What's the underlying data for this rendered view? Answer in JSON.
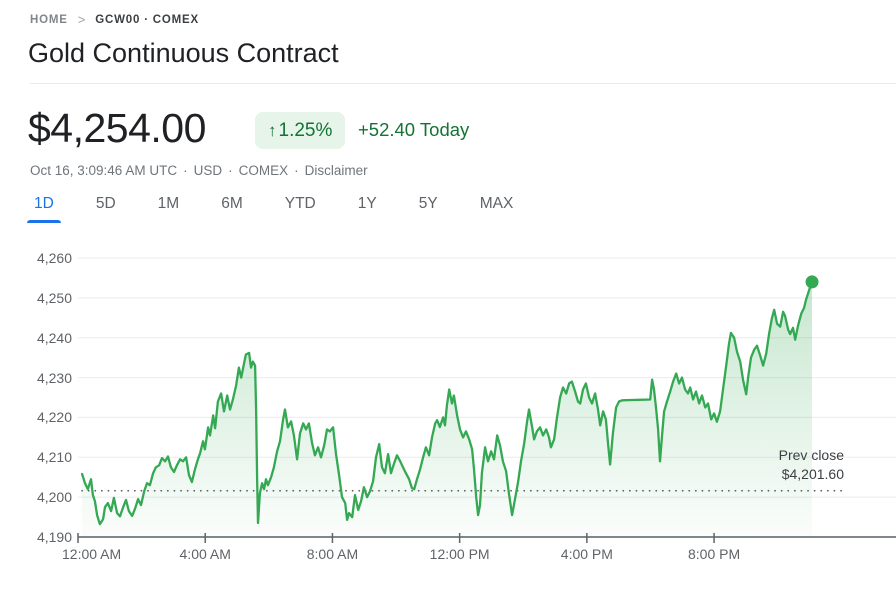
{
  "breadcrumb": {
    "home": "HOME",
    "separator": ">",
    "symbol": "GCW00 · COMEX"
  },
  "title": "Gold Continuous Contract",
  "quote": {
    "price": "$4,254.00",
    "arrow": "↑",
    "change_percent": "1.25%",
    "change_text": "+52.40 Today"
  },
  "meta": {
    "timestamp": "Oct 16, 3:09:46 AM UTC",
    "sep": "·",
    "currency": "USD",
    "exchange": "COMEX",
    "disclaimer": "Disclaimer"
  },
  "tabs": [
    {
      "label": "1D",
      "active": true
    },
    {
      "label": "5D",
      "active": false
    },
    {
      "label": "1M",
      "active": false
    },
    {
      "label": "6M",
      "active": false
    },
    {
      "label": "YTD",
      "active": false
    },
    {
      "label": "1Y",
      "active": false
    },
    {
      "label": "5Y",
      "active": false
    },
    {
      "label": "MAX",
      "active": false
    }
  ],
  "colors": {
    "line_green": "#34a853",
    "text_green": "#137333",
    "badge_bg": "#e6f4ea",
    "tab_blue": "#1a73e8",
    "axis_gray": "#5f6368",
    "grid_gray": "#e9ebee",
    "axis_line_gray": "#80868b"
  },
  "chart_data": {
    "type": "area",
    "title": "Gold Continuous Contract — 1D intraday price",
    "xlabel": "",
    "ylabel": "",
    "x_axis": {
      "range_hours": [
        0,
        25.72
      ],
      "ticks": [
        {
          "hour": 0,
          "label": "12:00 AM",
          "align": "left"
        },
        {
          "hour": 4,
          "label": "4:00 AM"
        },
        {
          "hour": 8,
          "label": "8:00 AM"
        },
        {
          "hour": 12,
          "label": "12:00 PM"
        },
        {
          "hour": 16,
          "label": "4:00 PM"
        },
        {
          "hour": 20,
          "label": "8:00 PM"
        }
      ]
    },
    "y_axis": {
      "range": [
        4190,
        4260
      ],
      "ticks": [
        {
          "value": 4260,
          "label": "4,260"
        },
        {
          "value": 4250,
          "label": "4,250"
        },
        {
          "value": 4240,
          "label": "4,240"
        },
        {
          "value": 4230,
          "label": "4,230"
        },
        {
          "value": 4220,
          "label": "4,220"
        },
        {
          "value": 4210,
          "label": "4,210"
        },
        {
          "value": 4200,
          "label": "4,200"
        },
        {
          "value": 4190,
          "label": "4,190"
        }
      ]
    },
    "prev_close": {
      "label": "Prev close",
      "value_label": "$4,201.60",
      "value": 4201.6
    },
    "legend": null,
    "grid": true,
    "series": [
      {
        "name": "price",
        "color": "#34a853",
        "points": [
          [
            0.13,
            4205.8
          ],
          [
            0.22,
            4203.5
          ],
          [
            0.31,
            4202.0
          ],
          [
            0.41,
            4204.5
          ],
          [
            0.47,
            4200.5
          ],
          [
            0.53,
            4199.0
          ],
          [
            0.6,
            4195.5
          ],
          [
            0.69,
            4193.2
          ],
          [
            0.79,
            4194.5
          ],
          [
            0.85,
            4197.5
          ],
          [
            0.94,
            4198.5
          ],
          [
            1.04,
            4196.5
          ],
          [
            1.13,
            4199.8
          ],
          [
            1.23,
            4196.0
          ],
          [
            1.32,
            4195.2
          ],
          [
            1.42,
            4197.5
          ],
          [
            1.51,
            4199.3
          ],
          [
            1.6,
            4196.5
          ],
          [
            1.7,
            4195.3
          ],
          [
            1.79,
            4197.0
          ],
          [
            1.89,
            4199.5
          ],
          [
            1.98,
            4198.0
          ],
          [
            2.08,
            4201.5
          ],
          [
            2.17,
            4203.5
          ],
          [
            2.26,
            4203.0
          ],
          [
            2.36,
            4206.0
          ],
          [
            2.45,
            4207.5
          ],
          [
            2.55,
            4208.0
          ],
          [
            2.64,
            4209.8
          ],
          [
            2.74,
            4209.0
          ],
          [
            2.83,
            4210.2
          ],
          [
            2.92,
            4207.5
          ],
          [
            3.02,
            4206.3
          ],
          [
            3.11,
            4208.0
          ],
          [
            3.21,
            4209.5
          ],
          [
            3.3,
            4209.0
          ],
          [
            3.4,
            4210.0
          ],
          [
            3.49,
            4205.5
          ],
          [
            3.58,
            4203.8
          ],
          [
            3.68,
            4207.0
          ],
          [
            3.77,
            4209.5
          ],
          [
            3.84,
            4211.0
          ],
          [
            3.93,
            4214.0
          ],
          [
            3.99,
            4212.0
          ],
          [
            4.09,
            4217.5
          ],
          [
            4.15,
            4215.5
          ],
          [
            4.25,
            4220.5
          ],
          [
            4.31,
            4217.3
          ],
          [
            4.4,
            4224.0
          ],
          [
            4.5,
            4226.0
          ],
          [
            4.59,
            4221.5
          ],
          [
            4.69,
            4225.5
          ],
          [
            4.78,
            4222.0
          ],
          [
            4.87,
            4224.5
          ],
          [
            4.97,
            4228.0
          ],
          [
            5.06,
            4232.5
          ],
          [
            5.13,
            4230.0
          ],
          [
            5.22,
            4233.5
          ],
          [
            5.28,
            4235.8
          ],
          [
            5.38,
            4236.2
          ],
          [
            5.44,
            4232.5
          ],
          [
            5.5,
            4234.0
          ],
          [
            5.57,
            4233.0
          ],
          [
            5.6,
            4222.0
          ],
          [
            5.63,
            4205.0
          ],
          [
            5.66,
            4193.5
          ],
          [
            5.72,
            4201.0
          ],
          [
            5.79,
            4203.5
          ],
          [
            5.85,
            4202.0
          ],
          [
            5.91,
            4204.5
          ],
          [
            5.97,
            4203.0
          ],
          [
            6.07,
            4205.0
          ],
          [
            6.16,
            4207.5
          ],
          [
            6.26,
            4211.5
          ],
          [
            6.35,
            4214.0
          ],
          [
            6.45,
            4219.5
          ],
          [
            6.51,
            4222.0
          ],
          [
            6.6,
            4217.5
          ],
          [
            6.7,
            4219.0
          ],
          [
            6.79,
            4215.5
          ],
          [
            6.89,
            4209.5
          ],
          [
            6.98,
            4216.0
          ],
          [
            7.08,
            4218.5
          ],
          [
            7.17,
            4217.0
          ],
          [
            7.26,
            4218.5
          ],
          [
            7.36,
            4213.5
          ],
          [
            7.45,
            4210.5
          ],
          [
            7.55,
            4212.5
          ],
          [
            7.64,
            4210.0
          ],
          [
            7.74,
            4213.0
          ],
          [
            7.83,
            4217.0
          ],
          [
            7.92,
            4216.5
          ],
          [
            8.02,
            4217.5
          ],
          [
            8.11,
            4211.0
          ],
          [
            8.21,
            4205.5
          ],
          [
            8.3,
            4200.0
          ],
          [
            8.4,
            4198.5
          ],
          [
            8.46,
            4194.3
          ],
          [
            8.52,
            4196.0
          ],
          [
            8.62,
            4195.0
          ],
          [
            8.71,
            4200.5
          ],
          [
            8.81,
            4196.8
          ],
          [
            8.9,
            4199.0
          ],
          [
            8.99,
            4202.5
          ],
          [
            9.09,
            4200.0
          ],
          [
            9.18,
            4201.5
          ],
          [
            9.28,
            4204.0
          ],
          [
            9.37,
            4210.0
          ],
          [
            9.47,
            4213.3
          ],
          [
            9.56,
            4207.5
          ],
          [
            9.65,
            4206.0
          ],
          [
            9.75,
            4210.8
          ],
          [
            9.84,
            4206.0
          ],
          [
            9.94,
            4208.5
          ],
          [
            10.03,
            4210.5
          ],
          [
            10.13,
            4209.0
          ],
          [
            10.22,
            4207.5
          ],
          [
            10.31,
            4206.0
          ],
          [
            10.41,
            4204.5
          ],
          [
            10.5,
            4202.3
          ],
          [
            10.57,
            4202.0
          ],
          [
            10.66,
            4204.5
          ],
          [
            10.75,
            4206.8
          ],
          [
            10.85,
            4210.0
          ],
          [
            10.94,
            4212.5
          ],
          [
            11.04,
            4210.5
          ],
          [
            11.13,
            4215.0
          ],
          [
            11.23,
            4218.5
          ],
          [
            11.29,
            4219.3
          ],
          [
            11.38,
            4217.6
          ],
          [
            11.48,
            4220.0
          ],
          [
            11.54,
            4218.0
          ],
          [
            11.6,
            4223.0
          ],
          [
            11.67,
            4227.0
          ],
          [
            11.76,
            4223.5
          ],
          [
            11.82,
            4225.5
          ],
          [
            11.92,
            4220.5
          ],
          [
            12.01,
            4217.0
          ],
          [
            12.11,
            4215.0
          ],
          [
            12.2,
            4216.5
          ],
          [
            12.3,
            4214.5
          ],
          [
            12.39,
            4212.0
          ],
          [
            12.45,
            4207.0
          ],
          [
            12.52,
            4200.0
          ],
          [
            12.58,
            4195.5
          ],
          [
            12.64,
            4198.0
          ],
          [
            12.7,
            4206.0
          ],
          [
            12.8,
            4212.5
          ],
          [
            12.89,
            4209.0
          ],
          [
            12.99,
            4211.5
          ],
          [
            13.08,
            4209.5
          ],
          [
            13.18,
            4215.5
          ],
          [
            13.27,
            4213.0
          ],
          [
            13.36,
            4209.0
          ],
          [
            13.46,
            4206.5
          ],
          [
            13.55,
            4201.0
          ],
          [
            13.65,
            4195.5
          ],
          [
            13.74,
            4199.5
          ],
          [
            13.84,
            4204.0
          ],
          [
            13.93,
            4209.0
          ],
          [
            14.03,
            4213.5
          ],
          [
            14.12,
            4219.0
          ],
          [
            14.18,
            4222.0
          ],
          [
            14.28,
            4217.5
          ],
          [
            14.34,
            4214.5
          ],
          [
            14.43,
            4216.5
          ],
          [
            14.53,
            4217.5
          ],
          [
            14.62,
            4215.5
          ],
          [
            14.72,
            4217.0
          ],
          [
            14.81,
            4215.0
          ],
          [
            14.87,
            4212.5
          ],
          [
            14.97,
            4214.5
          ],
          [
            15.06,
            4220.0
          ],
          [
            15.16,
            4225.0
          ],
          [
            15.25,
            4227.5
          ],
          [
            15.35,
            4226.0
          ],
          [
            15.44,
            4228.5
          ],
          [
            15.53,
            4229.0
          ],
          [
            15.63,
            4226.5
          ],
          [
            15.72,
            4224.0
          ],
          [
            15.79,
            4223.5
          ],
          [
            15.88,
            4227.0
          ],
          [
            15.97,
            4228.5
          ],
          [
            16.07,
            4225.0
          ],
          [
            16.16,
            4223.5
          ],
          [
            16.26,
            4226.0
          ],
          [
            16.35,
            4222.0
          ],
          [
            16.42,
            4218.0
          ],
          [
            16.51,
            4221.5
          ],
          [
            16.6,
            4219.5
          ],
          [
            16.67,
            4213.0
          ],
          [
            16.73,
            4208.2
          ],
          [
            16.82,
            4216.0
          ],
          [
            16.92,
            4222.5
          ],
          [
            17.01,
            4224.0
          ],
          [
            17.11,
            4224.3
          ],
          [
            17.99,
            4224.5
          ],
          [
            18.05,
            4229.5
          ],
          [
            18.11,
            4227.0
          ],
          [
            18.18,
            4222.0
          ],
          [
            18.24,
            4217.0
          ],
          [
            18.3,
            4209.0
          ],
          [
            18.36,
            4215.0
          ],
          [
            18.43,
            4221.5
          ],
          [
            18.52,
            4224.0
          ],
          [
            18.62,
            4226.5
          ],
          [
            18.71,
            4229.0
          ],
          [
            18.81,
            4231.0
          ],
          [
            18.9,
            4228.5
          ],
          [
            18.99,
            4230.0
          ],
          [
            19.09,
            4227.0
          ],
          [
            19.18,
            4226.0
          ],
          [
            19.25,
            4227.5
          ],
          [
            19.34,
            4224.5
          ],
          [
            19.43,
            4226.5
          ],
          [
            19.53,
            4223.5
          ],
          [
            19.62,
            4225.5
          ],
          [
            19.72,
            4222.5
          ],
          [
            19.81,
            4223.5
          ],
          [
            19.91,
            4219.5
          ],
          [
            20.0,
            4221.0
          ],
          [
            20.09,
            4218.9
          ],
          [
            20.19,
            4221.5
          ],
          [
            20.28,
            4227.0
          ],
          [
            20.38,
            4233.0
          ],
          [
            20.47,
            4238.5
          ],
          [
            20.53,
            4241.2
          ],
          [
            20.63,
            4240.0
          ],
          [
            20.72,
            4236.5
          ],
          [
            20.82,
            4234.0
          ],
          [
            20.91,
            4229.5
          ],
          [
            21.01,
            4225.8
          ],
          [
            21.07,
            4230.0
          ],
          [
            21.16,
            4235.0
          ],
          [
            21.26,
            4237.0
          ],
          [
            21.35,
            4238.0
          ],
          [
            21.45,
            4235.5
          ],
          [
            21.54,
            4233.0
          ],
          [
            21.64,
            4236.0
          ],
          [
            21.73,
            4241.0
          ],
          [
            21.82,
            4245.0
          ],
          [
            21.89,
            4247.0
          ],
          [
            21.98,
            4243.5
          ],
          [
            22.08,
            4242.8
          ],
          [
            22.17,
            4246.5
          ],
          [
            22.23,
            4245.5
          ],
          [
            22.33,
            4242.0
          ],
          [
            22.39,
            4240.9
          ],
          [
            22.48,
            4242.5
          ],
          [
            22.55,
            4239.5
          ],
          [
            22.64,
            4243.0
          ],
          [
            22.74,
            4246.0
          ],
          [
            22.83,
            4247.5
          ],
          [
            22.89,
            4249.5
          ],
          [
            22.99,
            4252.0
          ],
          [
            23.08,
            4254.0
          ]
        ]
      }
    ],
    "last_point": {
      "hour": 23.08,
      "price": 4254.0
    }
  }
}
